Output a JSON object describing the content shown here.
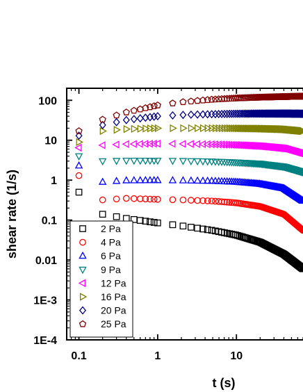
{
  "chart_data": {
    "type": "scatter",
    "xlabel": "t (s)",
    "ylabel": "shear rate (1/s)",
    "xscale": "log",
    "yscale": "log",
    "xlim": [
      0.07,
      70
    ],
    "ylim": [
      0.0001,
      200
    ],
    "x_ticks": [
      {
        "value": 0.1,
        "label": "0.1"
      },
      {
        "value": 1,
        "label": "1"
      },
      {
        "value": 10,
        "label": "10"
      }
    ],
    "y_ticks": [
      {
        "value": 0.0001,
        "label": "1E-4"
      },
      {
        "value": 0.001,
        "label": "1E-3"
      },
      {
        "value": 0.01,
        "label": "0.01"
      },
      {
        "value": 0.1,
        "label": "0.1"
      },
      {
        "value": 1,
        "label": "1"
      },
      {
        "value": 10,
        "label": "10"
      },
      {
        "value": 100,
        "label": "100"
      }
    ],
    "legend_position": "bottom-left",
    "grid": false,
    "series": [
      {
        "name": "2 Pa",
        "marker": "square",
        "color": "#000000",
        "points": [
          [
            0.1,
            0.5
          ],
          [
            0.2,
            0.14
          ],
          [
            0.4,
            0.11
          ],
          [
            1,
            0.085
          ],
          [
            2,
            0.072
          ],
          [
            5,
            0.055
          ],
          [
            10,
            0.042
          ],
          [
            20,
            0.028
          ],
          [
            40,
            0.014
          ],
          [
            70,
            0.006
          ]
        ]
      },
      {
        "name": "4 Pa",
        "marker": "circle",
        "color": "#ff0000",
        "points": [
          [
            0.1,
            1.3
          ],
          [
            0.2,
            0.32
          ],
          [
            0.4,
            0.35
          ],
          [
            1,
            0.33
          ],
          [
            2,
            0.32
          ],
          [
            5,
            0.3
          ],
          [
            10,
            0.27
          ],
          [
            20,
            0.22
          ],
          [
            40,
            0.14
          ],
          [
            70,
            0.055
          ]
        ]
      },
      {
        "name": "6 Pa",
        "marker": "triangle-up",
        "color": "#0000ff",
        "points": [
          [
            0.1,
            2.3
          ],
          [
            0.2,
            0.9
          ],
          [
            0.4,
            0.98
          ],
          [
            1,
            0.99
          ],
          [
            2,
            0.98
          ],
          [
            5,
            0.95
          ],
          [
            10,
            0.9
          ],
          [
            20,
            0.8
          ],
          [
            40,
            0.62
          ],
          [
            70,
            0.3
          ]
        ]
      },
      {
        "name": "9 Pa",
        "marker": "triangle-down",
        "color": "#008080",
        "points": [
          [
            0.1,
            4
          ],
          [
            0.2,
            3
          ],
          [
            0.4,
            3.1
          ],
          [
            1,
            3.1
          ],
          [
            2,
            3.05
          ],
          [
            5,
            2.95
          ],
          [
            10,
            2.8
          ],
          [
            20,
            2.6
          ],
          [
            40,
            2.2
          ],
          [
            70,
            1.6
          ]
        ]
      },
      {
        "name": "12 Pa",
        "marker": "triangle-left",
        "color": "#ff00ff",
        "points": [
          [
            0.1,
            6.5
          ],
          [
            0.2,
            7.5
          ],
          [
            0.4,
            8
          ],
          [
            1,
            8.2
          ],
          [
            2,
            8.1
          ],
          [
            5,
            7.9
          ],
          [
            10,
            7.6
          ],
          [
            20,
            7.1
          ],
          [
            40,
            6.2
          ],
          [
            70,
            4.5
          ]
        ]
      },
      {
        "name": "16 Pa",
        "marker": "triangle-right",
        "color": "#808000",
        "points": [
          [
            0.1,
            9
          ],
          [
            0.2,
            17
          ],
          [
            0.4,
            19
          ],
          [
            1,
            20
          ],
          [
            2,
            20
          ],
          [
            5,
            20
          ],
          [
            10,
            19.8
          ],
          [
            20,
            19.5
          ],
          [
            40,
            18.8
          ],
          [
            70,
            17
          ]
        ]
      },
      {
        "name": "20 Pa",
        "marker": "diamond",
        "color": "#000080",
        "points": [
          [
            0.1,
            13
          ],
          [
            0.2,
            24
          ],
          [
            0.4,
            32
          ],
          [
            1,
            40
          ],
          [
            2,
            43
          ],
          [
            5,
            45
          ],
          [
            10,
            46
          ],
          [
            20,
            46.5
          ],
          [
            40,
            46.5
          ],
          [
            70,
            46
          ]
        ]
      },
      {
        "name": "25 Pa",
        "marker": "pentagon",
        "color": "#800000",
        "points": [
          [
            0.1,
            17
          ],
          [
            0.2,
            33
          ],
          [
            0.4,
            50
          ],
          [
            1,
            75
          ],
          [
            2,
            90
          ],
          [
            5,
            105
          ],
          [
            10,
            113
          ],
          [
            20,
            118
          ],
          [
            40,
            122
          ],
          [
            70,
            125
          ]
        ]
      }
    ]
  }
}
